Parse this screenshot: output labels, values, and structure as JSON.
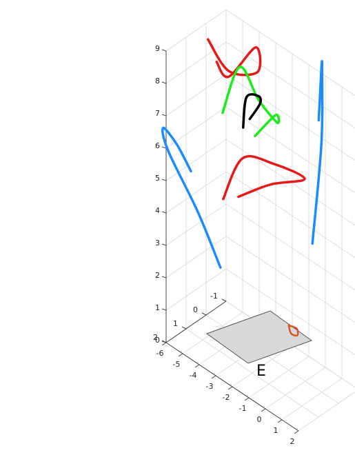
{
  "chart_data": {
    "type": "line",
    "projection": "3d",
    "grid": true,
    "xlabel": "",
    "ylabel": "",
    "zlabel": "",
    "x_ticks": [
      "-6",
      "-5",
      "-4",
      "-3",
      "-2",
      "-1",
      "0",
      "1",
      "2"
    ],
    "y_ticks": [
      "-1",
      "0",
      "1",
      "2"
    ],
    "z_ticks": [
      "0",
      "1",
      "2",
      "3",
      "4",
      "5",
      "6",
      "7",
      "8",
      "9"
    ],
    "annotation": "E",
    "colors": {
      "blue": "#1a8cff",
      "red": "#e61919",
      "green": "#1aeb1a",
      "black": "#000000",
      "orange": "#d9531e",
      "plane_fill": "#d8d8d8"
    },
    "series": [
      {
        "color": "blue",
        "points": [
          [
            -3.2,
            1.6,
            3.1
          ],
          [
            -4.2,
            1.9,
            4.6
          ],
          [
            -5.5,
            2.3,
            6.2
          ],
          [
            -5.7,
            2.4,
            6.9
          ],
          [
            -5.1,
            2.2,
            6.5
          ],
          [
            -4.5,
            2.0,
            5.8
          ]
        ]
      },
      {
        "color": "blue",
        "points": [
          [
            2.6,
            1.8,
            5.9
          ],
          [
            2.3,
            1.1,
            8.6
          ],
          [
            2.1,
            0.9,
            10.7
          ],
          [
            2.2,
            1.0,
            11.0
          ],
          [
            2.4,
            1.2,
            10.8
          ],
          [
            2.5,
            1.4,
            9.5
          ]
        ]
      },
      {
        "color": "red",
        "points": [
          [
            -4.0,
            0.8,
            4.6
          ],
          [
            -3.2,
            0.5,
            6.0
          ],
          [
            -1.6,
            0.3,
            6.3
          ],
          [
            0.2,
            0.2,
            6.4
          ],
          [
            -1.6,
            0.4,
            5.7
          ],
          [
            -3.2,
            0.7,
            4.9
          ]
        ]
      },
      {
        "color": "red",
        "points": [
          [
            -4.8,
            0.9,
            9.3
          ],
          [
            -3.9,
            0.6,
            8.5
          ],
          [
            -2.4,
            0.4,
            8.9
          ],
          [
            -2.4,
            0.5,
            9.7
          ],
          [
            -3.8,
            0.7,
            8.4
          ],
          [
            -4.4,
            0.8,
            8.7
          ]
        ]
      },
      {
        "color": "green",
        "points": [
          [
            -4.4,
            0.5,
            7.0
          ],
          [
            -3.6,
            0.3,
            8.6
          ],
          [
            -2.7,
            0.1,
            7.8
          ],
          [
            -1.7,
            0.0,
            7.4
          ],
          [
            -1.8,
            0.0,
            7.6
          ],
          [
            -2.8,
            0.2,
            6.7
          ]
        ]
      },
      {
        "color": "black",
        "points": [
          [
            -3.4,
            0.3,
            6.8
          ],
          [
            -3.2,
            0.3,
            7.8
          ],
          [
            -2.6,
            0.2,
            8.0
          ],
          [
            -2.5,
            0.2,
            7.8
          ],
          [
            -3.0,
            0.3,
            7.2
          ]
        ]
      },
      {
        "color": "orange",
        "points": [
          [
            -0.4,
            0.5,
            1.8
          ],
          [
            0.2,
            0.6,
            1.95
          ],
          [
            0.6,
            0.9,
            2.0
          ],
          [
            0.1,
            0.8,
            1.85
          ],
          [
            -0.4,
            0.5,
            1.8
          ]
        ]
      }
    ]
  }
}
